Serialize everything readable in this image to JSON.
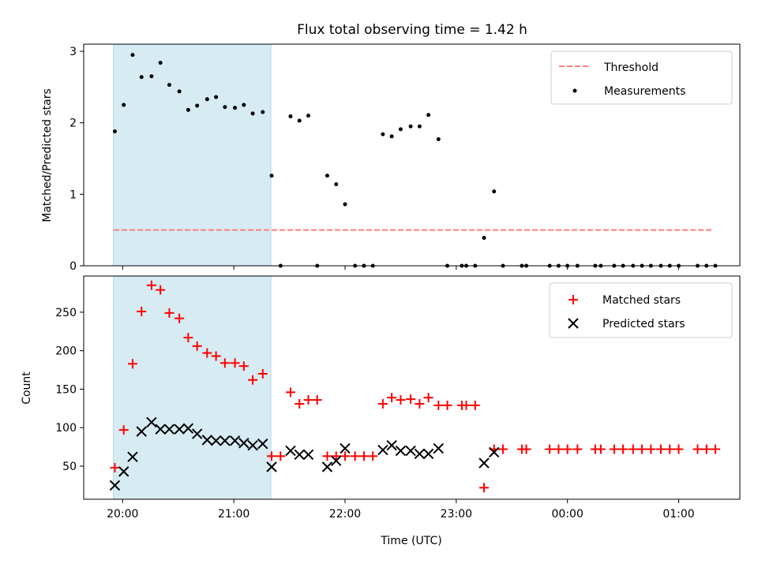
{
  "figure": {
    "title": "Flux total observing time = 1.42 h",
    "xlabel": "Time (UTC)",
    "x_ticks": [
      "20:00",
      "21:00",
      "22:00",
      "23:00",
      "00:00",
      "01:00"
    ],
    "shaded_interval": {
      "x_start": "19:55",
      "x_end": "21:20",
      "color": "#add8e6"
    }
  },
  "chart_data": [
    {
      "type": "scatter",
      "title": "Flux total observing time = 1.42 h",
      "xlabel": "",
      "ylabel": "Matched/Predicted stars",
      "x_unit": "time (UTC), hours after 00:00 of the first night",
      "ylim": [
        0,
        3.1
      ],
      "y_ticks": [
        0,
        1,
        2,
        3
      ],
      "grid": false,
      "legend": "top-right",
      "threshold": {
        "name": "Threshold",
        "value": 0.5,
        "x_range": [
          19.92,
          25.3
        ],
        "color": "#ff7f7f",
        "style": "dashed"
      },
      "series": [
        {
          "name": "Measurements",
          "color": "#000000",
          "marker": "dot",
          "points": [
            [
              19.93,
              1.88
            ],
            [
              20.01,
              2.25
            ],
            [
              20.09,
              2.95
            ],
            [
              20.17,
              2.64
            ],
            [
              20.26,
              2.65
            ],
            [
              20.34,
              2.84
            ],
            [
              20.42,
              2.53
            ],
            [
              20.51,
              2.44
            ],
            [
              20.59,
              2.18
            ],
            [
              20.67,
              2.24
            ],
            [
              20.76,
              2.33
            ],
            [
              20.84,
              2.36
            ],
            [
              20.92,
              2.22
            ],
            [
              21.01,
              2.21
            ],
            [
              21.09,
              2.25
            ],
            [
              21.17,
              2.13
            ],
            [
              21.26,
              2.15
            ],
            [
              21.34,
              1.26
            ],
            [
              21.42,
              0.0
            ],
            [
              21.51,
              2.09
            ],
            [
              21.59,
              2.03
            ],
            [
              21.67,
              2.1
            ],
            [
              21.75,
              0.0
            ],
            [
              21.84,
              1.26
            ],
            [
              21.92,
              1.14
            ],
            [
              22.0,
              0.86
            ],
            [
              22.09,
              0.0
            ],
            [
              22.17,
              0.0
            ],
            [
              22.25,
              0.0
            ],
            [
              22.34,
              1.84
            ],
            [
              22.42,
              1.81
            ],
            [
              22.5,
              1.91
            ],
            [
              22.59,
              1.95
            ],
            [
              22.67,
              1.95
            ],
            [
              22.75,
              2.11
            ],
            [
              22.84,
              1.77
            ],
            [
              22.92,
              0.0
            ],
            [
              23.05,
              0.0
            ],
            [
              23.09,
              0.0
            ],
            [
              23.17,
              0.0
            ],
            [
              23.25,
              0.39
            ],
            [
              23.34,
              1.04
            ],
            [
              23.42,
              0.0
            ],
            [
              23.59,
              0.0
            ],
            [
              23.63,
              0.0
            ],
            [
              23.84,
              0.0
            ],
            [
              23.92,
              0.0
            ],
            [
              24.0,
              0.0
            ],
            [
              24.09,
              0.0
            ],
            [
              24.25,
              0.0
            ],
            [
              24.3,
              0.0
            ],
            [
              24.42,
              0.0
            ],
            [
              24.5,
              0.0
            ],
            [
              24.59,
              0.0
            ],
            [
              24.67,
              0.0
            ],
            [
              24.75,
              0.0
            ],
            [
              24.84,
              0.0
            ],
            [
              24.92,
              0.0
            ],
            [
              25.0,
              0.0
            ],
            [
              25.17,
              0.0
            ],
            [
              25.25,
              0.0
            ],
            [
              25.33,
              0.0
            ]
          ]
        }
      ]
    },
    {
      "type": "scatter",
      "xlabel": "Time (UTC)",
      "ylabel": "Count",
      "x_unit": "time (UTC), hours after 00:00 of the first night",
      "ylim": [
        7,
        297
      ],
      "y_ticks": [
        50,
        100,
        150,
        200,
        250
      ],
      "grid": false,
      "legend": "top-right",
      "series": [
        {
          "name": "Matched stars",
          "color": "#ff0000",
          "marker": "plus",
          "points": [
            [
              19.93,
              48
            ],
            [
              20.01,
              97
            ],
            [
              20.09,
              183
            ],
            [
              20.17,
              251
            ],
            [
              20.26,
              285
            ],
            [
              20.34,
              279
            ],
            [
              20.42,
              249
            ],
            [
              20.51,
              242
            ],
            [
              20.59,
              217
            ],
            [
              20.67,
              206
            ],
            [
              20.76,
              197
            ],
            [
              20.84,
              193
            ],
            [
              20.92,
              184
            ],
            [
              21.01,
              184
            ],
            [
              21.09,
              180
            ],
            [
              21.17,
              162
            ],
            [
              21.26,
              170
            ],
            [
              21.34,
              63
            ],
            [
              21.42,
              63
            ],
            [
              21.51,
              146
            ],
            [
              21.59,
              131
            ],
            [
              21.67,
              136
            ],
            [
              21.75,
              136
            ],
            [
              21.84,
              63
            ],
            [
              21.92,
              63
            ],
            [
              22.0,
              63
            ],
            [
              22.09,
              63
            ],
            [
              22.17,
              63
            ],
            [
              22.25,
              63
            ],
            [
              22.34,
              131
            ],
            [
              22.42,
              139
            ],
            [
              22.5,
              136
            ],
            [
              22.59,
              137
            ],
            [
              22.67,
              131
            ],
            [
              22.75,
              139
            ],
            [
              22.84,
              129
            ],
            [
              22.92,
              129
            ],
            [
              23.05,
              129
            ],
            [
              23.09,
              129
            ],
            [
              23.17,
              129
            ],
            [
              23.25,
              22
            ],
            [
              23.34,
              72
            ],
            [
              23.42,
              72
            ],
            [
              23.59,
              72
            ],
            [
              23.63,
              72
            ],
            [
              23.84,
              72
            ],
            [
              23.92,
              72
            ],
            [
              24.0,
              72
            ],
            [
              24.09,
              72
            ],
            [
              24.25,
              72
            ],
            [
              24.3,
              72
            ],
            [
              24.42,
              72
            ],
            [
              24.5,
              72
            ],
            [
              24.59,
              72
            ],
            [
              24.67,
              72
            ],
            [
              24.75,
              72
            ],
            [
              24.84,
              72
            ],
            [
              24.92,
              72
            ],
            [
              25.0,
              72
            ],
            [
              25.17,
              72
            ],
            [
              25.25,
              72
            ],
            [
              25.33,
              72
            ]
          ]
        },
        {
          "name": "Predicted stars",
          "color": "#000000",
          "marker": "x",
          "points": [
            [
              19.93,
              25
            ],
            [
              20.01,
              43
            ],
            [
              20.09,
              62
            ],
            [
              20.17,
              95
            ],
            [
              20.26,
              107
            ],
            [
              20.34,
              98
            ],
            [
              20.42,
              98
            ],
            [
              20.51,
              98
            ],
            [
              20.59,
              99
            ],
            [
              20.67,
              92
            ],
            [
              20.76,
              84
            ],
            [
              20.84,
              83
            ],
            [
              20.92,
              83
            ],
            [
              21.01,
              83
            ],
            [
              21.09,
              80
            ],
            [
              21.17,
              77
            ],
            [
              21.26,
              79
            ],
            [
              21.34,
              49
            ],
            [
              21.51,
              70
            ],
            [
              21.59,
              65
            ],
            [
              21.67,
              65
            ],
            [
              21.84,
              49
            ],
            [
              21.92,
              57
            ],
            [
              22.0,
              73
            ],
            [
              22.34,
              71
            ],
            [
              22.42,
              77
            ],
            [
              22.5,
              70
            ],
            [
              22.59,
              70
            ],
            [
              22.67,
              66
            ],
            [
              22.75,
              66
            ],
            [
              22.84,
              73
            ],
            [
              23.25,
              54
            ],
            [
              23.34,
              68
            ]
          ]
        }
      ]
    }
  ]
}
